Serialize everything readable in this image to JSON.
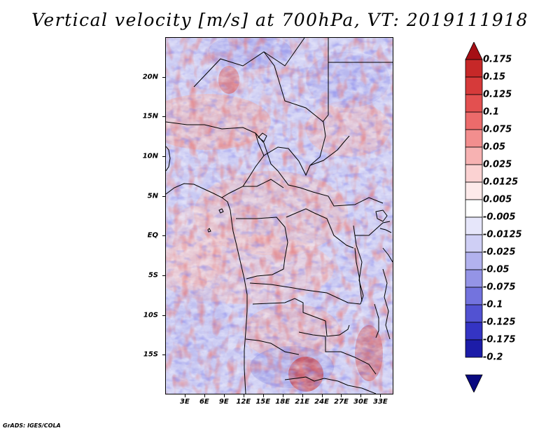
{
  "title": "Vertical velocity [m/s] at 700hPa, VT: 2019111918",
  "footer": "GrADS: IGES/COLA",
  "map": {
    "projection": "lat-lon",
    "lon_range": [
      0,
      35
    ],
    "lat_range": [
      -20,
      25
    ],
    "y_ticks": [
      "20N",
      "15N",
      "10N",
      "5N",
      "EQ",
      "5S",
      "10S",
      "15S"
    ],
    "y_tick_values": [
      20,
      15,
      10,
      5,
      0,
      -5,
      -10,
      -15
    ],
    "x_ticks": [
      "3E",
      "6E",
      "9E",
      "12E",
      "15E",
      "18E",
      "21E",
      "24E",
      "27E",
      "30E",
      "33E"
    ],
    "x_tick_values": [
      3,
      6,
      9,
      12,
      15,
      18,
      21,
      24,
      27,
      30,
      33
    ],
    "field": "vertical velocity at 700hPa",
    "positive_color": "#c62828",
    "negative_color": "#3b3bd8",
    "background_mean": "weakly negative (light blue-purple) with red bands"
  },
  "colorbar": {
    "labels": [
      "0.175",
      "0.15",
      "0.125",
      "0.1",
      "0.075",
      "0.05",
      "0.025",
      "0.0125",
      "0.005",
      "-0.005",
      "-0.0125",
      "-0.025",
      "-0.05",
      "-0.075",
      "-0.1",
      "-0.125",
      "-0.175",
      "-0.2"
    ],
    "colors": [
      "#a50f15",
      "#c62828",
      "#d63a3a",
      "#e35050",
      "#ec6b6b",
      "#f28e8e",
      "#f7b2b2",
      "#fbd2d2",
      "#fdeaea",
      "#ffffff",
      "#e6e6fa",
      "#cfcff5",
      "#b2b2ee",
      "#9494e6",
      "#7373de",
      "#5252d2",
      "#3434c4",
      "#1c1ca8",
      "#0a0a80"
    ]
  }
}
